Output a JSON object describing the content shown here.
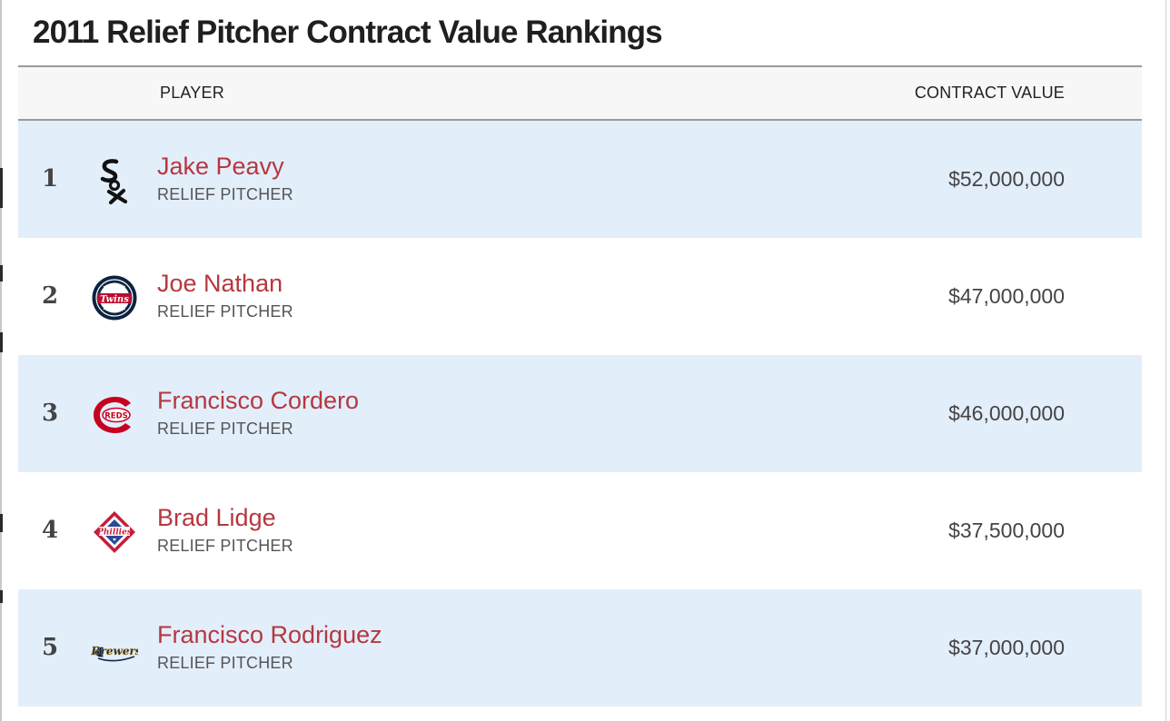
{
  "page": {
    "title": "2011 Relief Pitcher Contract Value Rankings"
  },
  "table": {
    "columns": {
      "player": "PLAYER",
      "contract_value": "CONTRACT VALUE"
    },
    "rows": [
      {
        "rank": "1",
        "name": "Jake Peavy",
        "position": "RELIEF PITCHER",
        "contract_value": "$52,000,000",
        "team_logo_icon": "white-sox-logo-icon"
      },
      {
        "rank": "2",
        "name": "Joe Nathan",
        "position": "RELIEF PITCHER",
        "contract_value": "$47,000,000",
        "team_logo_icon": "twins-logo-icon"
      },
      {
        "rank": "3",
        "name": "Francisco Cordero",
        "position": "RELIEF PITCHER",
        "contract_value": "$46,000,000",
        "team_logo_icon": "reds-logo-icon"
      },
      {
        "rank": "4",
        "name": "Brad Lidge",
        "position": "RELIEF PITCHER",
        "contract_value": "$37,500,000",
        "team_logo_icon": "phillies-logo-icon"
      },
      {
        "rank": "5",
        "name": "Francisco Rodriguez",
        "position": "RELIEF PITCHER",
        "contract_value": "$37,000,000",
        "team_logo_icon": "brewers-logo-icon"
      }
    ]
  },
  "colors": {
    "player_link": "#b5383f",
    "row_alt_background": "#e3eefb",
    "header_background": "#f7f7f7"
  }
}
